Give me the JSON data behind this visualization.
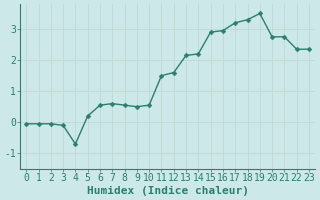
{
  "title": "",
  "xlabel": "Humidex (Indice chaleur)",
  "ylabel": "",
  "x": [
    0,
    1,
    2,
    3,
    4,
    5,
    6,
    7,
    8,
    9,
    10,
    11,
    12,
    13,
    14,
    15,
    16,
    17,
    18,
    19,
    20,
    21,
    22,
    23
  ],
  "y": [
    -0.05,
    -0.05,
    -0.05,
    -0.1,
    -0.7,
    0.2,
    0.55,
    0.6,
    0.55,
    0.5,
    0.55,
    1.5,
    1.6,
    2.15,
    2.2,
    2.9,
    2.95,
    3.2,
    3.3,
    3.5,
    2.75,
    2.75,
    2.35,
    2.35
  ],
  "line_color": "#2a7f6f",
  "marker": "D",
  "marker_size": 2.5,
  "background_color": "#cce8e8",
  "grid_color": "#c0d8d0",
  "tick_color": "#2a7f6f",
  "label_color": "#2a7f6f",
  "ylim": [
    -1.5,
    3.8
  ],
  "xlim": [
    -0.5,
    23.5
  ],
  "yticks": [
    -1,
    0,
    1,
    2,
    3
  ],
  "xticks": [
    0,
    1,
    2,
    3,
    4,
    5,
    6,
    7,
    8,
    9,
    10,
    11,
    12,
    13,
    14,
    15,
    16,
    17,
    18,
    19,
    20,
    21,
    22,
    23
  ],
  "xlabel_fontsize": 8,
  "tick_fontsize": 7,
  "linewidth": 1.0
}
